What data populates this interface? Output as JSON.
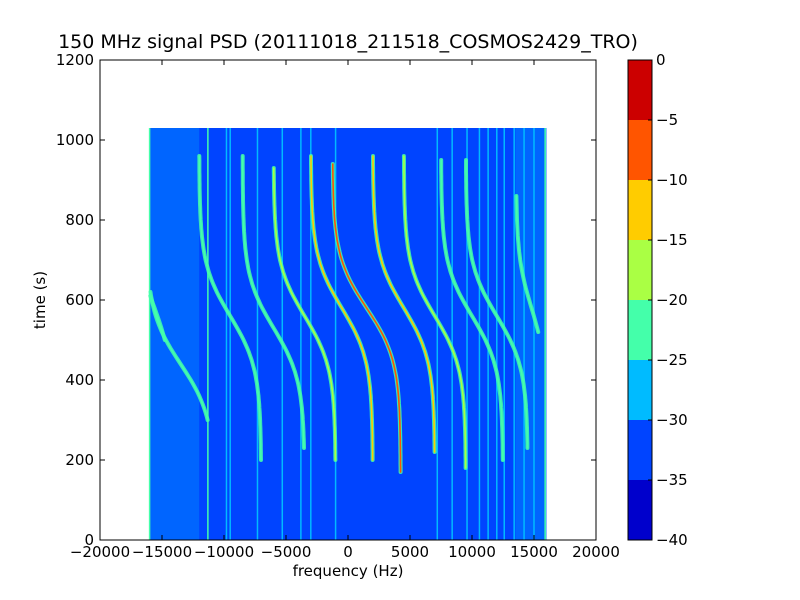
{
  "chart_data": {
    "type": "heatmap",
    "title": "150 MHz signal PSD (20111018_211518_COSMOS2429_TRO)",
    "xlabel": "frequency (Hz)",
    "ylabel": "time (s)",
    "xlim": [
      -20000,
      20000
    ],
    "ylim": [
      0,
      1200
    ],
    "x_ticks": [
      -20000,
      -15000,
      -10000,
      -5000,
      0,
      5000,
      10000,
      15000,
      20000
    ],
    "x_tick_labels": [
      "−20000",
      "−15000",
      "−10000",
      "−5000",
      "0",
      "5000",
      "10000",
      "15000",
      "20000"
    ],
    "y_ticks": [
      0,
      200,
      400,
      600,
      800,
      1000,
      1200
    ],
    "y_tick_labels": [
      "0",
      "200",
      "400",
      "600",
      "800",
      "1000",
      "1200"
    ],
    "data_extent": {
      "x": [
        -16000,
        16000
      ],
      "y": [
        0,
        1030
      ]
    },
    "background_level": -32,
    "colorbar": {
      "levels": [
        -40,
        -35,
        -30,
        -25,
        -20,
        -15,
        -10,
        -5,
        0
      ],
      "tick_labels": [
        "−40",
        "−35",
        "−30",
        "−25",
        "−20",
        "−15",
        "−10",
        "−5",
        "0"
      ],
      "colors": [
        "#0000cc",
        "#0044ff",
        "#00bbff",
        "#44ffaa",
        "#aaff44",
        "#ffcc00",
        "#ff5500",
        "#cc0000"
      ]
    },
    "traces": [
      {
        "center_hz": -15600,
        "t_center_s": 580,
        "spread_hz": 3000,
        "t_range_s": [
          500,
          700
        ],
        "level": -22
      },
      {
        "center_hz": -13500,
        "t_center_s": 440,
        "spread_hz": 5500,
        "t_range_s": [
          300,
          620
        ],
        "level": -24
      },
      {
        "center_hz": -9500,
        "t_center_s": 560,
        "spread_hz": 5000,
        "t_range_s": [
          200,
          960
        ],
        "level": -24
      },
      {
        "center_hz": -6000,
        "t_center_s": 530,
        "spread_hz": 5000,
        "t_range_s": [
          230,
          960
        ],
        "level": -22
      },
      {
        "center_hz": -3500,
        "t_center_s": 560,
        "spread_hz": 5000,
        "t_range_s": [
          200,
          930
        ],
        "level": -18
      },
      {
        "center_hz": -500,
        "t_center_s": 580,
        "spread_hz": 5000,
        "t_range_s": [
          200,
          960
        ],
        "level": -14
      },
      {
        "center_hz": 1500,
        "t_center_s": 580,
        "spread_hz": 5500,
        "t_range_s": [
          170,
          940
        ],
        "level": -8
      },
      {
        "center_hz": 4500,
        "t_center_s": 580,
        "spread_hz": 5000,
        "t_range_s": [
          220,
          960
        ],
        "level": -14
      },
      {
        "center_hz": 7000,
        "t_center_s": 560,
        "spread_hz": 5000,
        "t_range_s": [
          180,
          960
        ],
        "level": -16
      },
      {
        "center_hz": 10000,
        "t_center_s": 560,
        "spread_hz": 5000,
        "t_range_s": [
          200,
          950
        ],
        "level": -22
      },
      {
        "center_hz": 12000,
        "t_center_s": 560,
        "spread_hz": 5000,
        "t_range_s": [
          230,
          950
        ],
        "level": -24
      },
      {
        "center_hz": 14800,
        "t_center_s": 580,
        "spread_hz": 2500,
        "t_range_s": [
          520,
          860
        ],
        "level": -22
      }
    ],
    "vertical_lines": [
      {
        "x": -16000,
        "level": -24
      },
      {
        "x": -11300,
        "level": -24
      },
      {
        "x": -9800,
        "level": -28
      },
      {
        "x": -9500,
        "level": -26
      },
      {
        "x": -7300,
        "level": -30
      },
      {
        "x": -5300,
        "level": -26
      },
      {
        "x": -3800,
        "level": -28
      },
      {
        "x": -3000,
        "level": -28
      },
      {
        "x": -1000,
        "level": -26
      },
      {
        "x": 7200,
        "level": -26
      },
      {
        "x": 8400,
        "level": -28
      },
      {
        "x": 9600,
        "level": -28
      },
      {
        "x": 10600,
        "level": -28
      },
      {
        "x": 11300,
        "level": -28
      },
      {
        "x": 12000,
        "level": -28
      },
      {
        "x": 12600,
        "level": -28
      },
      {
        "x": 13400,
        "level": -26
      },
      {
        "x": 14200,
        "level": -26
      },
      {
        "x": 15000,
        "level": -26
      },
      {
        "x": 15900,
        "level": -24
      }
    ]
  }
}
